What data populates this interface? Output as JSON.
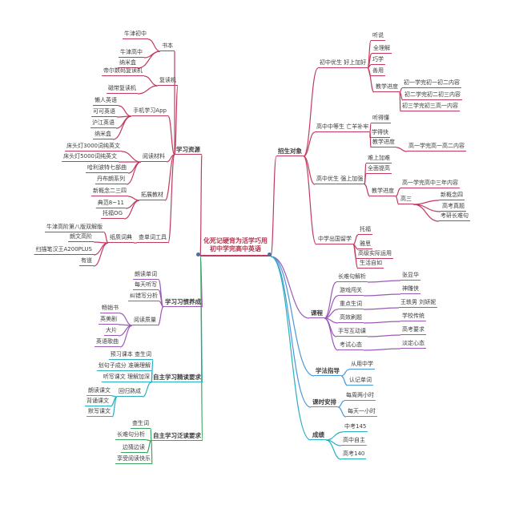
{
  "theme": {
    "red": "#c13b5e",
    "purple": "#9b59b6",
    "teal": "#2ab0bf",
    "green": "#3ba55d",
    "blue": "#4a98d9",
    "cyan": "#2ab0bf",
    "dot": "#4a6fa5"
  },
  "center": {
    "line1": "化死记硬背为活学巧用",
    "line2": "初中学完高中英语"
  },
  "resources": {
    "label": "学习资源",
    "books": {
      "label": "书本",
      "items": [
        "牛津初中",
        "牛津高中",
        "纳米盒"
      ]
    },
    "repeater": {
      "label": "复读机",
      "items": [
        "帝尔数码复读机",
        "磁带复读机"
      ]
    },
    "apps": {
      "label": "手机学习App",
      "items": [
        "懒人英语",
        "可可英语",
        "沪江英语",
        "纳米盒"
      ]
    },
    "reading": {
      "label": "阅读材料",
      "items": [
        "床头灯3000词纯英文",
        "床头灯5000词纯英文",
        "哈利波特七部曲",
        "丹布朗系列"
      ]
    },
    "textbooks": {
      "label": "拓展教材",
      "items": [
        "新概念二三四",
        "典范8~11",
        "托福OG"
      ]
    },
    "dict": {
      "label": "查单词工具",
      "mid": "纸质词典",
      "items": [
        "牛津高阶第八版双解版",
        "朗文高阶",
        "扫描笔汉王A200PLUS",
        "有道"
      ]
    }
  },
  "habits": {
    "label": "学习习惯养成",
    "items": [
      "朗读单词",
      "每天听写",
      "纠错写分析"
    ],
    "media": {
      "label": "阅读质量",
      "items": [
        "畅销书",
        "英美剧",
        "大片",
        "英语歌曲"
      ]
    }
  },
  "intensive": {
    "label": "自主学习精读要求",
    "items": [
      "预习课本 查生词",
      "划句子成分 准确理解",
      "听写课文 理解加深"
    ],
    "review": {
      "label": "回归熟成",
      "items": [
        "朗读课文",
        "背诵课文",
        "默写课文"
      ]
    }
  },
  "extensive": {
    "label": "自主学习泛读要求",
    "items": [
      "查生词",
      "长难句分析",
      "边猜边读",
      "享受阅读快乐"
    ]
  },
  "enrollment": {
    "label": "招生对象",
    "junior": {
      "label": "初中优生 好上加好",
      "items": [
        "听说",
        "全理解",
        "巧学",
        "善用"
      ],
      "pace": {
        "label": "教学进度",
        "items": [
          "初一学完初一初二内容",
          "初二学完初二初三内容",
          "初三学完初三高一内容"
        ]
      }
    },
    "senior_mid": {
      "label": "高中中等生 亡羊补牢",
      "items": [
        "听得懂",
        "学得快"
      ],
      "pace": {
        "label": "教学进度",
        "items": [
          "高一学完高一高二内容"
        ]
      }
    },
    "senior_top": {
      "label": "高中优生 强上加强",
      "items": [
        "难上加难",
        "全面提高"
      ],
      "pace": {
        "label": "教学进度",
        "items": [
          "高一学完高中三年内容"
        ],
        "g3": {
          "label": "高三",
          "items": [
            "新概念四",
            "高考真题",
            "考研长难句"
          ]
        }
      }
    },
    "abroad": {
      "label": "中学出国留学",
      "items": [
        "托福",
        "雅思",
        "高级实际运用",
        "生活自如"
      ]
    }
  },
  "courses": {
    "label": "课程",
    "rows": [
      {
        "l": "长难句解析",
        "r": "张显华"
      },
      {
        "l": "游戏闯关",
        "r": "神雕侠"
      },
      {
        "l": "重点生词",
        "r": "王轶男 刘妍妮"
      },
      {
        "l": "高效刷题",
        "r": "学校传统"
      },
      {
        "l": "手写互动课",
        "r": "高考要求"
      },
      {
        "l": "考试心态",
        "r": "淡定心态"
      }
    ]
  },
  "guidance": {
    "label": "学法指导",
    "items": [
      "从用中学",
      "认记单词"
    ]
  },
  "schedule": {
    "label": "课时安排",
    "items": [
      "每周两小时",
      "每天一小时"
    ]
  },
  "scores": {
    "label": "成绩",
    "items": [
      "中考145",
      "高中自主",
      "高考140"
    ]
  }
}
